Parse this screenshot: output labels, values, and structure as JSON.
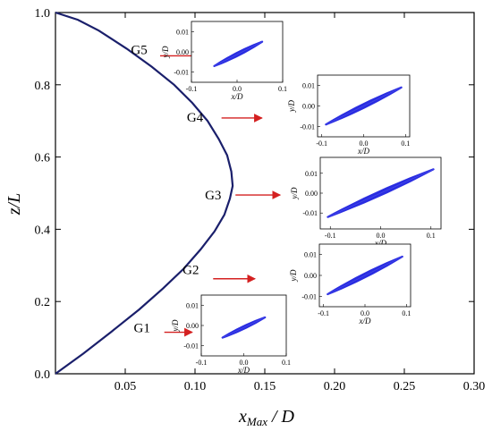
{
  "chart_data": {
    "type": "line",
    "xlabel": "x",
    "xlabel_sub": "Max",
    "xlabel_suffix": " / D",
    "ylabel": "z/L",
    "xlim": [
      0.0,
      0.3
    ],
    "ylim": [
      0.0,
      1.0
    ],
    "x_ticks": [
      {
        "v": 0.05,
        "label": "0.05"
      },
      {
        "v": 0.1,
        "label": "0.10"
      },
      {
        "v": 0.15,
        "label": "0.15"
      },
      {
        "v": 0.2,
        "label": "0.20"
      },
      {
        "v": 0.25,
        "label": "0.25"
      },
      {
        "v": 0.3,
        "label": "0.30"
      }
    ],
    "y_ticks": [
      {
        "v": 0.0,
        "label": "0.0"
      },
      {
        "v": 0.2,
        "label": "0.2"
      },
      {
        "v": 0.4,
        "label": "0.4"
      },
      {
        "v": 0.6,
        "label": "0.6"
      },
      {
        "v": 0.8,
        "label": "0.8"
      },
      {
        "v": 1.0,
        "label": "1.0"
      }
    ],
    "line_color": "#1a1f6b",
    "arrow_color": "#d42020",
    "trajectory_color": "#1f22e0",
    "series": [
      {
        "x": [
          0.0,
          0.02,
          0.04,
          0.06,
          0.077,
          0.092,
          0.104,
          0.114,
          0.121,
          0.125,
          0.127,
          0.126,
          0.123,
          0.117,
          0.109,
          0.098,
          0.085,
          0.069,
          0.051,
          0.031,
          0.016,
          0.0
        ],
        "y": [
          0.0,
          0.056,
          0.116,
          0.178,
          0.236,
          0.291,
          0.344,
          0.394,
          0.44,
          0.485,
          0.52,
          0.56,
          0.605,
          0.65,
          0.7,
          0.75,
          0.8,
          0.85,
          0.9,
          0.95,
          0.98,
          1.0
        ]
      }
    ],
    "gauge_points": [
      {
        "label": "G1",
        "x": 0.062,
        "y": 0.128,
        "arrow": [
          [
            0.078,
            0.115
          ],
          [
            0.098,
            0.115
          ]
        ]
      },
      {
        "label": "G2",
        "x": 0.097,
        "y": 0.288,
        "arrow": [
          [
            0.113,
            0.263
          ],
          [
            0.143,
            0.263
          ]
        ]
      },
      {
        "label": "G3",
        "x": 0.113,
        "y": 0.495,
        "arrow": [
          [
            0.129,
            0.495
          ],
          [
            0.161,
            0.495
          ]
        ]
      },
      {
        "label": "G4",
        "x": 0.1,
        "y": 0.71,
        "arrow": [
          [
            0.119,
            0.708
          ],
          [
            0.148,
            0.708
          ]
        ]
      },
      {
        "label": "G5",
        "x": 0.06,
        "y": 0.897,
        "arrow": [
          [
            0.075,
            0.88
          ],
          [
            0.103,
            0.88
          ]
        ]
      }
    ],
    "insets": [
      {
        "name": "G5",
        "xlabel": "x/D",
        "ylabel": "y/D",
        "xlim": [
          -0.1,
          0.1
        ],
        "ylim": [
          -0.015,
          0.015
        ],
        "x_ticks": [
          {
            "v": -0.1,
            "label": "-0.1"
          },
          {
            "v": 0.0,
            "label": "0.0"
          },
          {
            "v": 0.1,
            "label": "0.1"
          }
        ],
        "y_ticks": [
          {
            "v": 0.01,
            "label": "0.01"
          },
          {
            "v": 0.0,
            "label": "0.00"
          },
          {
            "v": -0.01,
            "label": "-0.01"
          }
        ],
        "trajectory_from": [
          -0.05,
          -0.007
        ],
        "trajectory_to": [
          0.055,
          0.005
        ],
        "trajectory_width": 0.003
      },
      {
        "name": "G4",
        "xlabel": "x/D",
        "ylabel": "y/D",
        "xlim": [
          -0.11,
          0.11
        ],
        "ylim": [
          -0.015,
          0.015
        ],
        "x_ticks": [
          {
            "v": -0.1,
            "label": "-0.1"
          },
          {
            "v": 0.0,
            "label": "0.0"
          },
          {
            "v": 0.1,
            "label": "0.1"
          }
        ],
        "y_ticks": [
          {
            "v": 0.01,
            "label": "0.01"
          },
          {
            "v": 0.0,
            "label": "0.00"
          },
          {
            "v": -0.01,
            "label": "-0.01"
          }
        ],
        "trajectory_from": [
          -0.09,
          -0.009
        ],
        "trajectory_to": [
          0.09,
          0.009
        ],
        "trajectory_width": 0.0035
      },
      {
        "name": "G3",
        "xlabel": "x/D",
        "ylabel": "y/D",
        "xlim": [
          -0.12,
          0.12
        ],
        "ylim": [
          -0.018,
          0.018
        ],
        "x_ticks": [
          {
            "v": -0.1,
            "label": "-0.1"
          },
          {
            "v": 0.0,
            "label": "0.0"
          },
          {
            "v": 0.1,
            "label": "0.1"
          }
        ],
        "y_ticks": [
          {
            "v": 0.01,
            "label": "0.01"
          },
          {
            "v": 0.0,
            "label": "0.00"
          },
          {
            "v": -0.01,
            "label": "-0.01"
          }
        ],
        "trajectory_from": [
          -0.105,
          -0.012
        ],
        "trajectory_to": [
          0.105,
          0.012
        ],
        "trajectory_width": 0.004
      },
      {
        "name": "G2",
        "xlabel": "x/D",
        "ylabel": "y/D",
        "xlim": [
          -0.11,
          0.11
        ],
        "ylim": [
          -0.015,
          0.015
        ],
        "x_ticks": [
          {
            "v": -0.1,
            "label": "-0.1"
          },
          {
            "v": 0.0,
            "label": "0.0"
          },
          {
            "v": 0.1,
            "label": "0.1"
          }
        ],
        "y_ticks": [
          {
            "v": 0.01,
            "label": "0.01"
          },
          {
            "v": 0.0,
            "label": "0.00"
          },
          {
            "v": -0.01,
            "label": "-0.01"
          }
        ],
        "trajectory_from": [
          -0.09,
          -0.009
        ],
        "trajectory_to": [
          0.09,
          0.009
        ],
        "trajectory_width": 0.0035
      },
      {
        "name": "G1",
        "xlabel": "x/D",
        "ylabel": "y/D",
        "xlim": [
          -0.1,
          0.1
        ],
        "ylim": [
          -0.015,
          0.015
        ],
        "x_ticks": [
          {
            "v": -0.1,
            "label": "-0.1"
          },
          {
            "v": 0.0,
            "label": "0.0"
          },
          {
            "v": 0.1,
            "label": "0.1"
          }
        ],
        "y_ticks": [
          {
            "v": 0.01,
            "label": "0.01"
          },
          {
            "v": 0.0,
            "label": "0.00"
          },
          {
            "v": -0.01,
            "label": "-0.01"
          }
        ],
        "trajectory_from": [
          -0.05,
          -0.006
        ],
        "trajectory_to": [
          0.05,
          0.004
        ],
        "trajectory_width": 0.0025
      }
    ]
  }
}
